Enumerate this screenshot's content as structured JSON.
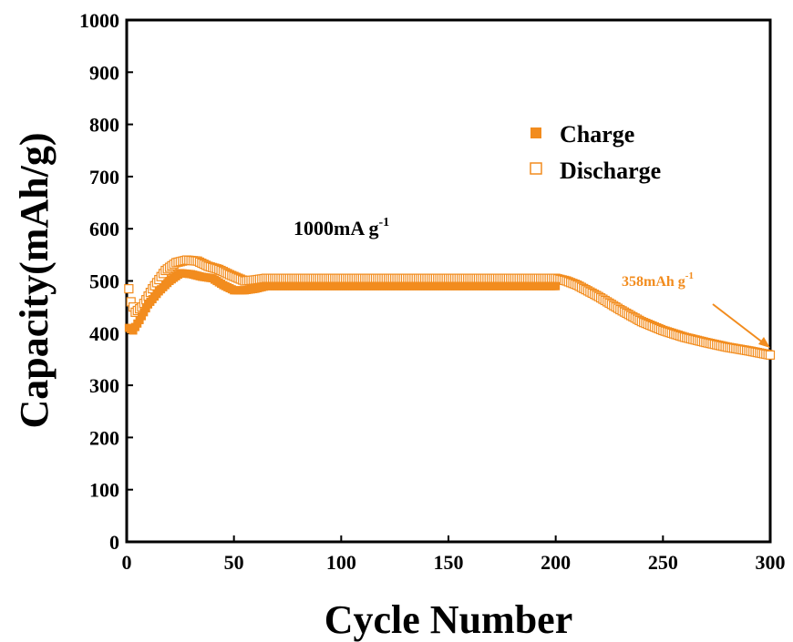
{
  "chart_data": {
    "type": "scatter",
    "xlabel": "Cycle Number",
    "ylabel": "Capacity(mAh/g)",
    "xlim": [
      0,
      300
    ],
    "ylim": [
      0,
      1000
    ],
    "xticks": [
      "0",
      "50",
      "100",
      "150",
      "200",
      "250",
      "300"
    ],
    "yticks": [
      "0",
      "100",
      "200",
      "300",
      "400",
      "500",
      "600",
      "700",
      "800",
      "900",
      "1000"
    ],
    "grid": false,
    "legend_position": "top-right",
    "rate_label": {
      "main": "1000mA g",
      "sup": "-1"
    },
    "end_label": {
      "main": "358mAh g",
      "sup": "-1"
    },
    "colors": {
      "series": "#F28C1E",
      "annotation": "#F28C1E"
    },
    "series": [
      {
        "name": "Charge",
        "marker": "filled-square",
        "points": [
          [
            1,
            410
          ],
          [
            3,
            405
          ],
          [
            6,
            425
          ],
          [
            10,
            455
          ],
          [
            15,
            480
          ],
          [
            20,
            500
          ],
          [
            25,
            515
          ],
          [
            30,
            513
          ],
          [
            35,
            508
          ],
          [
            40,
            505
          ],
          [
            45,
            492
          ],
          [
            50,
            482
          ],
          [
            55,
            482
          ],
          [
            60,
            485
          ],
          [
            65,
            490
          ],
          [
            70,
            490
          ],
          [
            100,
            490
          ],
          [
            150,
            490
          ],
          [
            200,
            490
          ]
        ]
      },
      {
        "name": "Discharge",
        "marker": "hollow-square",
        "points": [
          [
            1,
            485
          ],
          [
            2,
            460
          ],
          [
            4,
            440
          ],
          [
            7,
            450
          ],
          [
            12,
            485
          ],
          [
            18,
            520
          ],
          [
            23,
            535
          ],
          [
            28,
            540
          ],
          [
            33,
            538
          ],
          [
            38,
            528
          ],
          [
            43,
            522
          ],
          [
            48,
            512
          ],
          [
            55,
            500
          ],
          [
            60,
            502
          ],
          [
            65,
            505
          ],
          [
            70,
            505
          ],
          [
            100,
            505
          ],
          [
            150,
            505
          ],
          [
            200,
            505
          ],
          [
            205,
            500
          ],
          [
            210,
            492
          ],
          [
            220,
            470
          ],
          [
            230,
            445
          ],
          [
            240,
            422
          ],
          [
            250,
            405
          ],
          [
            260,
            392
          ],
          [
            270,
            382
          ],
          [
            280,
            373
          ],
          [
            290,
            366
          ],
          [
            300,
            358
          ]
        ]
      }
    ]
  }
}
